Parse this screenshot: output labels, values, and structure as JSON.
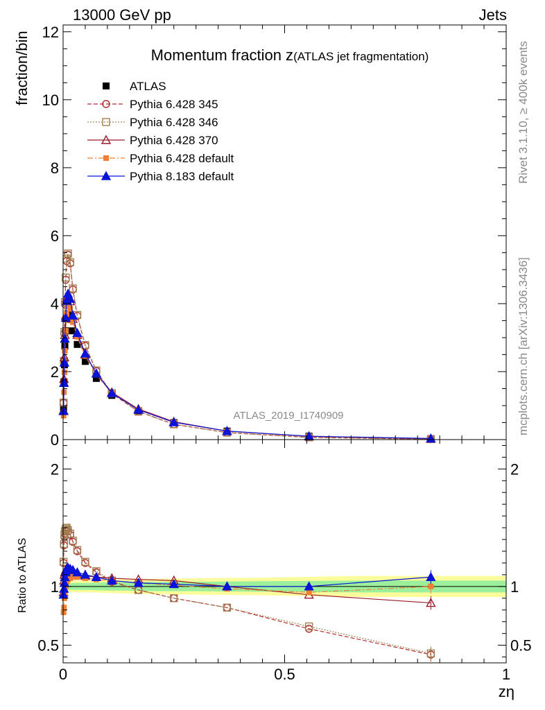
{
  "header": {
    "beam": "13000 GeV pp",
    "process": "Jets",
    "side_rivet": "Rivet 3.1.10, ≥ 400k events",
    "side_mcplots": "mcplots.cern.ch [arXiv:1306.3436]",
    "analysis_label": "ATLAS_2019_I1740909"
  },
  "chart_data": {
    "type": "line",
    "title_main": "Momentum fraction z",
    "title_sub": "(ATLAS jet fragmentation)",
    "ylabel": "fraction/bin",
    "xlabel": "zη",
    "ratio_ylabel": "Ratio to ATLAS",
    "xlim": [
      0,
      1
    ],
    "ylim": [
      0,
      12.2
    ],
    "ratio_ylim": [
      0.35,
      2.25
    ],
    "main_yticks": [
      0,
      2,
      4,
      6,
      8,
      10,
      12
    ],
    "ratio_yticks": [
      0.5,
      1,
      2
    ],
    "ratio_ytick_labels": [
      "0.5",
      "1",
      "2"
    ],
    "xticks": [
      0,
      0.5,
      1
    ],
    "xtick_labels": [
      "0",
      "0.5",
      "1"
    ],
    "band": {
      "x": [
        0,
        0.03,
        0.06,
        0.1,
        0.14,
        0.2,
        0.3,
        0.45,
        0.67,
        1.0
      ],
      "inner": [
        0.025,
        0.03,
        0.03,
        0.035,
        0.035,
        0.04,
        0.04,
        0.045,
        0.05,
        0.05
      ],
      "outer": [
        0.045,
        0.05,
        0.05,
        0.055,
        0.06,
        0.065,
        0.07,
        0.075,
        0.09,
        0.09
      ]
    },
    "series": [
      {
        "name": "ATLAS",
        "color": "#000000",
        "marker": "square-filled",
        "dash": "none",
        "x": [
          0.001,
          0.002,
          0.003,
          0.004,
          0.006,
          0.008,
          0.011,
          0.016,
          0.022,
          0.032,
          0.05,
          0.075,
          0.11,
          0.17,
          0.25,
          0.37,
          0.555,
          0.83
        ],
        "y": [
          0.9,
          1.7,
          2.2,
          2.75,
          3.2,
          3.55,
          3.7,
          3.6,
          3.2,
          2.8,
          2.3,
          1.8,
          1.3,
          0.85,
          0.5,
          0.25,
          0.1,
          0.03
        ]
      },
      {
        "name": "Pythia 6.428 345",
        "color": "#b22a2a",
        "marker": "circle-open",
        "dash": "6,3",
        "x": [
          0.001,
          0.002,
          0.003,
          0.004,
          0.006,
          0.008,
          0.011,
          0.016,
          0.022,
          0.032,
          0.05,
          0.075,
          0.11,
          0.17,
          0.25,
          0.37,
          0.555,
          0.83
        ],
        "ratio": [
          1.2,
          1.35,
          1.42,
          1.45,
          1.47,
          1.48,
          1.47,
          1.44,
          1.38,
          1.3,
          1.2,
          1.12,
          1.04,
          0.97,
          0.9,
          0.82,
          0.64,
          0.42
        ]
      },
      {
        "name": "Pythia 6.428 346",
        "color": "#a08050",
        "marker": "square-open",
        "dash": "2,2",
        "x": [
          0.001,
          0.002,
          0.003,
          0.004,
          0.006,
          0.008,
          0.011,
          0.016,
          0.022,
          0.032,
          0.05,
          0.075,
          0.11,
          0.17,
          0.25,
          0.37,
          0.555,
          0.83
        ],
        "ratio": [
          1.21,
          1.36,
          1.44,
          1.47,
          1.49,
          1.5,
          1.48,
          1.45,
          1.39,
          1.31,
          1.21,
          1.13,
          1.05,
          0.97,
          0.9,
          0.82,
          0.66,
          0.43
        ]
      },
      {
        "name": "Pythia 6.428 370",
        "color": "#9a1a2a",
        "marker": "triangle-open",
        "dash": "none",
        "x": [
          0.001,
          0.002,
          0.003,
          0.004,
          0.006,
          0.008,
          0.011,
          0.016,
          0.022,
          0.032,
          0.05,
          0.075,
          0.11,
          0.17,
          0.25,
          0.37,
          0.555,
          0.83
        ],
        "ratio": [
          0.95,
          1.05,
          1.1,
          1.12,
          1.14,
          1.15,
          1.14,
          1.13,
          1.11,
          1.1,
          1.09,
          1.08,
          1.07,
          1.06,
          1.05,
          1.0,
          0.93,
          0.86
        ]
      },
      {
        "name": "Pythia 6.428 default",
        "color": "#f08030",
        "marker": "square-filled-small",
        "dash": "8,3,2,3",
        "x": [
          0.001,
          0.002,
          0.003,
          0.004,
          0.006,
          0.008,
          0.011,
          0.016,
          0.022,
          0.032,
          0.05,
          0.075,
          0.11,
          0.17,
          0.25,
          0.37,
          0.555,
          0.83
        ],
        "ratio": [
          0.78,
          0.82,
          0.9,
          0.95,
          1.0,
          1.04,
          1.06,
          1.07,
          1.08,
          1.08,
          1.07,
          1.06,
          1.05,
          1.03,
          1.01,
          0.98,
          0.95,
          1.0
        ]
      },
      {
        "name": "Pythia 8.183 default",
        "color": "#0a14d8",
        "marker": "triangle-filled",
        "dash": "none",
        "x": [
          0.001,
          0.002,
          0.003,
          0.004,
          0.006,
          0.008,
          0.011,
          0.016,
          0.022,
          0.032,
          0.05,
          0.075,
          0.11,
          0.17,
          0.25,
          0.37,
          0.555,
          0.83
        ],
        "ratio": [
          0.93,
          0.98,
          1.03,
          1.08,
          1.12,
          1.15,
          1.16,
          1.15,
          1.14,
          1.12,
          1.1,
          1.08,
          1.05,
          1.03,
          1.02,
          1.0,
          1.0,
          1.08
        ]
      }
    ]
  }
}
